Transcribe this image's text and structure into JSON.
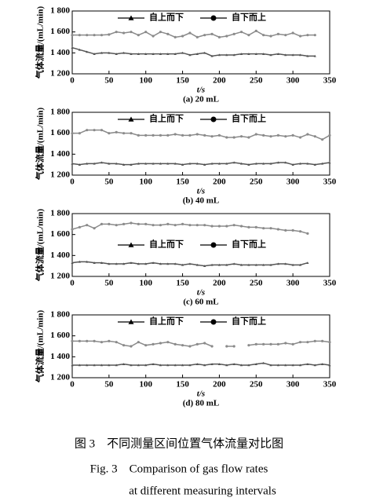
{
  "chart_data": [
    {
      "type": "line",
      "label": "(a)  20 mL",
      "xlabel": "t/s",
      "ylabel": "气体流量/(mL/min)",
      "legend": "upper center",
      "xlim": [
        0,
        350
      ],
      "xticks": [
        0,
        50,
        100,
        150,
        200,
        250,
        300,
        350
      ],
      "ylim": [
        1200,
        1800
      ],
      "yticks": [
        {
          "value": 1200,
          "label": "1 200"
        },
        {
          "value": 1400,
          "label": "1 400"
        },
        {
          "value": 1600,
          "label": "1 600"
        },
        {
          "value": 1800,
          "label": "1 800"
        }
      ],
      "x": [
        0,
        10,
        20,
        30,
        40,
        50,
        60,
        70,
        80,
        90,
        100,
        110,
        120,
        130,
        140,
        150,
        160,
        170,
        180,
        190,
        200,
        210,
        220,
        230,
        240,
        250,
        260,
        270,
        280,
        290,
        300,
        310,
        320,
        330
      ],
      "series": [
        {
          "name": "自上而下",
          "marker": "triangle",
          "color": "#555555",
          "values": [
            1450,
            1430,
            1410,
            1390,
            1400,
            1400,
            1390,
            1400,
            1390,
            1390,
            1390,
            1390,
            1390,
            1390,
            1390,
            1400,
            1380,
            1390,
            1400,
            1370,
            1380,
            1380,
            1380,
            1390,
            1390,
            1390,
            1390,
            1380,
            1390,
            1380,
            1380,
            1380,
            1370,
            1370
          ]
        },
        {
          "name": "自下而上",
          "marker": "circle",
          "color": "#8a8a8a",
          "values": [
            1570,
            1570,
            1570,
            1570,
            1570,
            1575,
            1600,
            1590,
            1600,
            1570,
            1600,
            1560,
            1600,
            1580,
            1550,
            1560,
            1590,
            1550,
            1570,
            1580,
            1550,
            1560,
            1580,
            1600,
            1570,
            1610,
            1570,
            1560,
            1580,
            1570,
            1590,
            1560,
            1570,
            1570
          ]
        }
      ]
    },
    {
      "type": "line",
      "label": "(b)  40 mL",
      "xlabel": "t/s",
      "ylabel": "气体流量/(mL/min)",
      "legend": "upper center",
      "xlim": [
        0,
        350
      ],
      "xticks": [
        0,
        50,
        100,
        150,
        200,
        250,
        300,
        350
      ],
      "ylim": [
        1200,
        1800
      ],
      "yticks": [
        {
          "value": 1200,
          "label": "1 200"
        },
        {
          "value": 1400,
          "label": "1 400"
        },
        {
          "value": 1600,
          "label": "1 600"
        },
        {
          "value": 1800,
          "label": "1 800"
        }
      ],
      "x": [
        0,
        10,
        20,
        30,
        40,
        50,
        60,
        70,
        80,
        90,
        100,
        110,
        120,
        130,
        140,
        150,
        160,
        170,
        180,
        190,
        200,
        210,
        220,
        230,
        240,
        250,
        260,
        270,
        280,
        290,
        300,
        310,
        320,
        330,
        340,
        350
      ],
      "series": [
        {
          "name": "自上而下",
          "marker": "triangle",
          "color": "#555555",
          "values": [
            1310,
            1300,
            1310,
            1310,
            1320,
            1310,
            1310,
            1300,
            1300,
            1310,
            1310,
            1310,
            1310,
            1310,
            1310,
            1300,
            1310,
            1310,
            1300,
            1310,
            1310,
            1310,
            1320,
            1310,
            1300,
            1310,
            1310,
            1310,
            1320,
            1320,
            1300,
            1310,
            1310,
            1300,
            1310,
            1320
          ]
        },
        {
          "name": "自下而上",
          "marker": "circle",
          "color": "#8a8a8a",
          "values": [
            1600,
            1600,
            1630,
            1630,
            1630,
            1600,
            1610,
            1600,
            1600,
            1580,
            1580,
            1580,
            1580,
            1580,
            1590,
            1580,
            1580,
            1590,
            1580,
            1570,
            1580,
            1560,
            1560,
            1570,
            1560,
            1590,
            1580,
            1570,
            1580,
            1570,
            1580,
            1560,
            1590,
            1570,
            1540,
            1580
          ]
        }
      ]
    },
    {
      "type": "line",
      "label": "(c)  60 mL",
      "xlabel": "t/s",
      "ylabel": "气体流量/(mL/min)",
      "legend": "center",
      "xlim": [
        0,
        350
      ],
      "xticks": [
        0,
        50,
        100,
        150,
        200,
        250,
        300,
        350
      ],
      "ylim": [
        1200,
        1800
      ],
      "yticks": [
        {
          "value": 1200,
          "label": "1 200"
        },
        {
          "value": 1400,
          "label": "1 400"
        },
        {
          "value": 1600,
          "label": "1 600"
        },
        {
          "value": 1800,
          "label": "1 800"
        }
      ],
      "x": [
        0,
        10,
        20,
        30,
        40,
        50,
        60,
        70,
        80,
        90,
        100,
        110,
        120,
        130,
        140,
        150,
        160,
        170,
        180,
        190,
        200,
        210,
        220,
        230,
        240,
        250,
        260,
        270,
        280,
        290,
        300,
        310,
        320
      ],
      "series": [
        {
          "name": "自上而下",
          "marker": "triangle",
          "color": "#555555",
          "values": [
            1330,
            1340,
            1340,
            1330,
            1330,
            1320,
            1320,
            1320,
            1330,
            1320,
            1320,
            1330,
            1320,
            1320,
            1320,
            1310,
            1320,
            1310,
            1300,
            1310,
            1310,
            1310,
            1320,
            1310,
            1310,
            1310,
            1310,
            1310,
            1320,
            1320,
            1310,
            1310,
            1330
          ]
        },
        {
          "name": "自下而上",
          "marker": "circle",
          "color": "#8a8a8a",
          "values": [
            1650,
            1670,
            1690,
            1660,
            1700,
            1700,
            1690,
            1700,
            1710,
            1700,
            1700,
            1690,
            1690,
            1700,
            1690,
            1700,
            1690,
            1690,
            1690,
            1680,
            1680,
            1680,
            1690,
            1680,
            1670,
            1670,
            1660,
            1660,
            1650,
            1640,
            1640,
            1630,
            1610
          ]
        }
      ]
    },
    {
      "type": "line",
      "label": "(d)  80 mL",
      "xlabel": "t/s",
      "ylabel": "气体流量/(mL/min)",
      "legend": "upper center",
      "xlim": [
        0,
        350
      ],
      "xticks": [
        0,
        50,
        100,
        150,
        200,
        250,
        300,
        350
      ],
      "ylim": [
        1200,
        1800
      ],
      "yticks": [
        {
          "value": 1200,
          "label": "1 200"
        },
        {
          "value": 1400,
          "label": "1 400"
        },
        {
          "value": 1600,
          "label": "1 600"
        },
        {
          "value": 1800,
          "label": "1 800"
        }
      ],
      "x": [
        0,
        10,
        20,
        30,
        40,
        50,
        60,
        70,
        80,
        90,
        100,
        110,
        120,
        130,
        140,
        150,
        160,
        170,
        180,
        190,
        200,
        210,
        220,
        230,
        240,
        250,
        260,
        270,
        280,
        290,
        300,
        310,
        320,
        330,
        340,
        350
      ],
      "series": [
        {
          "name": "自上而下",
          "marker": "triangle",
          "color": "#555555",
          "values": [
            1320,
            1320,
            1320,
            1320,
            1320,
            1320,
            1320,
            1330,
            1320,
            1320,
            1320,
            1330,
            1320,
            1320,
            1320,
            1320,
            1320,
            1330,
            1320,
            1330,
            1330,
            1320,
            1330,
            1320,
            1320,
            1330,
            1340,
            1320,
            1320,
            1320,
            1320,
            1320,
            1330,
            1320,
            1330,
            1320
          ]
        },
        {
          "name": "自下而上",
          "marker": "circle",
          "color": "#8a8a8a",
          "values": [
            1550,
            1550,
            1550,
            1550,
            1540,
            1550,
            1540,
            1510,
            1500,
            1540,
            1510,
            1520,
            1530,
            1540,
            1520,
            1510,
            1500,
            1520,
            1530,
            1500,
            null,
            1500,
            1500,
            null,
            1510,
            1520,
            1520,
            1520,
            1520,
            1530,
            1520,
            1540,
            1540,
            1550,
            1550,
            1540
          ]
        }
      ]
    }
  ],
  "caption": {
    "cn": "图 3　不同测量区间位置气体流量对比图",
    "en_1": "Fig. 3　Comparison of gas flow rates",
    "en_2": "at different measuring intervals"
  }
}
